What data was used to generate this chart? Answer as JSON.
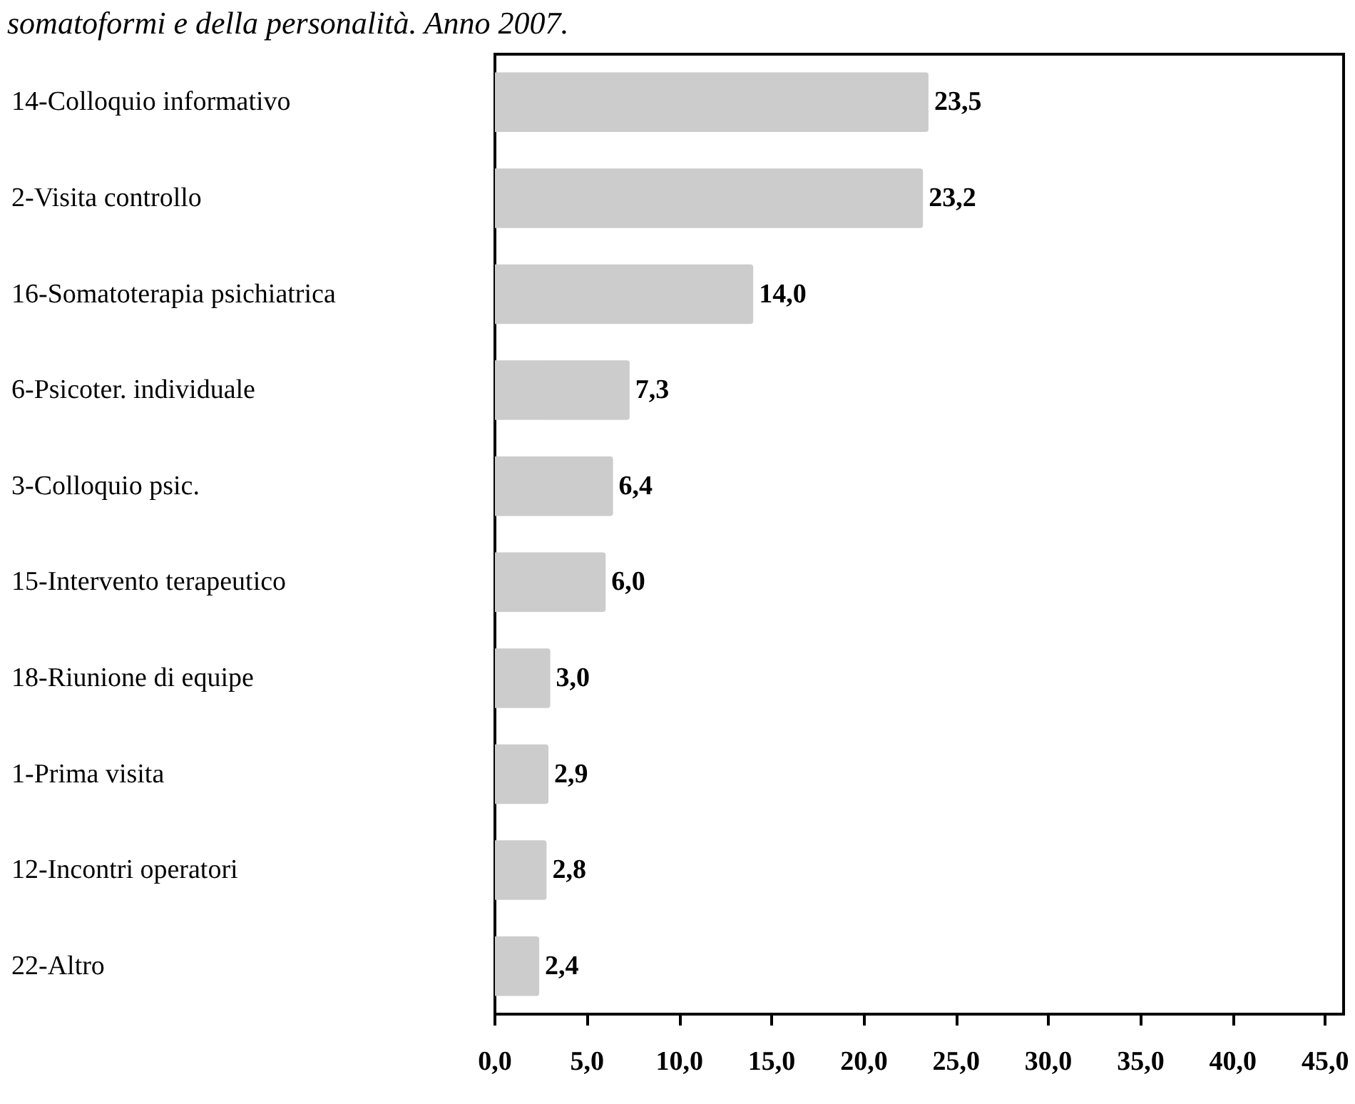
{
  "chart_data": {
    "type": "bar",
    "orientation": "horizontal",
    "title": "somatoformi e della personalità. Anno 2007.",
    "categories": [
      "14-Colloquio informativo",
      "2-Visita controllo",
      "16-Somatoterapia psichiatrica",
      "6-Psicoter. individuale",
      "3-Colloquio psic.",
      "15-Intervento terapeutico",
      "18-Riunione di equipe",
      "1-Prima visita",
      "12-Incontri operatori",
      "22-Altro"
    ],
    "values": [
      23.5,
      23.2,
      14.0,
      7.3,
      6.4,
      6.0,
      3.0,
      2.9,
      2.8,
      2.4
    ],
    "value_labels": [
      "23,5",
      "23,2",
      "14,0",
      "7,3",
      "6,4",
      "6,0",
      "3,0",
      "2,9",
      "2,8",
      "2,4"
    ],
    "color": "#cccccc",
    "xlim": [
      0,
      46
    ],
    "xticks": [
      {
        "value": 0,
        "label": "0,0"
      },
      {
        "value": 5,
        "label": "5,0"
      },
      {
        "value": 10,
        "label": "10,0"
      },
      {
        "value": 15,
        "label": "15,0"
      },
      {
        "value": 20,
        "label": "20,0"
      },
      {
        "value": 25,
        "label": "25,0"
      },
      {
        "value": 30,
        "label": "30,0"
      },
      {
        "value": 35,
        "label": "35,0"
      },
      {
        "value": 40,
        "label": "40,0"
      },
      {
        "value": 45,
        "label": "45,0"
      }
    ],
    "grid": false
  }
}
